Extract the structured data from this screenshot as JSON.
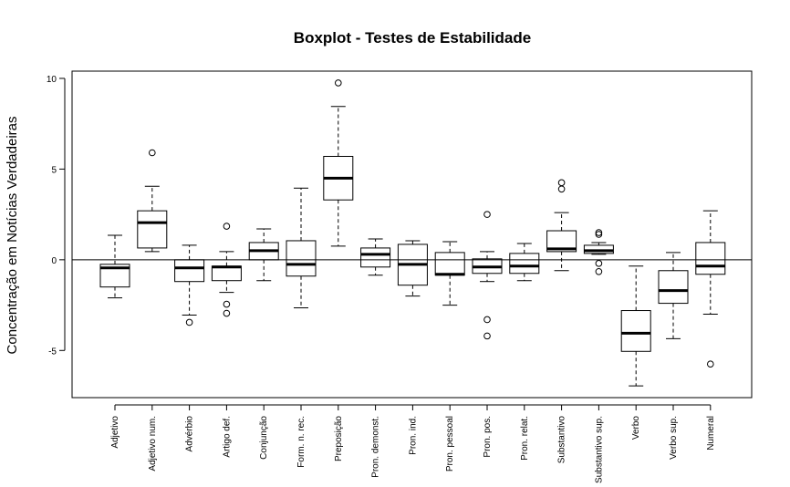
{
  "chart_data": {
    "type": "boxplot",
    "title": "Boxplot - Testes de Estabilidade",
    "xlabel": "",
    "ylabel": "Concentração em Notícias Verdadeiras",
    "ylim": [
      -7.6,
      10.4
    ],
    "yticks": [
      10,
      5,
      0,
      -5
    ],
    "reference_line": 0,
    "grid": false,
    "categories": [
      "Adjetivo",
      "Adjetivo num.",
      "Advérbio",
      "Artigo def.",
      "Conjunção",
      "Form. n. rec.",
      "Preposição",
      "Pron. demonst.",
      "Pron. ind.",
      "Pron. pessoal",
      "Pron. pos.",
      "Pron. relat.",
      "Substantivo",
      "Substantivo sup.",
      "Verbo",
      "Verbo sup.",
      "Numeral"
    ],
    "boxes": [
      {
        "whisker_low": -2.1,
        "q1": -1.5,
        "median": -0.45,
        "q3": -0.25,
        "whisker_high": 1.35,
        "outliers": []
      },
      {
        "whisker_low": 0.45,
        "q1": 0.65,
        "median": 2.05,
        "q3": 2.7,
        "whisker_high": 4.05,
        "outliers": [
          5.9
        ]
      },
      {
        "whisker_low": -3.05,
        "q1": -1.2,
        "median": -0.45,
        "q3": 0.0,
        "whisker_high": 0.8,
        "outliers": [
          -3.45
        ]
      },
      {
        "whisker_low": -1.8,
        "q1": -1.15,
        "median": -0.4,
        "q3": -0.35,
        "whisker_high": 0.45,
        "outliers": [
          1.85,
          -2.45,
          -2.95
        ]
      },
      {
        "whisker_low": -1.15,
        "q1": 0.0,
        "median": 0.5,
        "q3": 0.95,
        "whisker_high": 1.7,
        "outliers": []
      },
      {
        "whisker_low": -2.65,
        "q1": -0.9,
        "median": -0.25,
        "q3": 1.05,
        "whisker_high": 3.95,
        "outliers": []
      },
      {
        "whisker_low": 0.75,
        "q1": 3.3,
        "median": 4.5,
        "q3": 5.7,
        "whisker_high": 8.45,
        "outliers": [
          9.75
        ]
      },
      {
        "whisker_low": -0.85,
        "q1": -0.4,
        "median": 0.3,
        "q3": 0.65,
        "whisker_high": 1.15,
        "outliers": []
      },
      {
        "whisker_low": -2.0,
        "q1": -1.4,
        "median": -0.25,
        "q3": 0.85,
        "whisker_high": 1.05,
        "outliers": []
      },
      {
        "whisker_low": -2.5,
        "q1": -0.85,
        "median": -0.8,
        "q3": 0.4,
        "whisker_high": 1.0,
        "outliers": []
      },
      {
        "whisker_low": -1.2,
        "q1": -0.75,
        "median": -0.4,
        "q3": 0.05,
        "whisker_high": 0.45,
        "outliers": [
          2.5,
          -3.3,
          -4.2
        ]
      },
      {
        "whisker_low": -1.15,
        "q1": -0.75,
        "median": -0.35,
        "q3": 0.35,
        "whisker_high": 0.9,
        "outliers": []
      },
      {
        "whisker_low": -0.6,
        "q1": 0.45,
        "median": 0.6,
        "q3": 1.6,
        "whisker_high": 2.6,
        "outliers": [
          4.25,
          3.9
        ]
      },
      {
        "whisker_low": 0.3,
        "q1": 0.35,
        "median": 0.5,
        "q3": 0.8,
        "whisker_high": 0.95,
        "outliers": [
          1.5,
          1.4,
          -0.2,
          -0.65
        ]
      },
      {
        "whisker_low": -6.95,
        "q1": -5.05,
        "median": -4.05,
        "q3": -2.8,
        "whisker_high": -0.35,
        "outliers": []
      },
      {
        "whisker_low": -4.35,
        "q1": -2.4,
        "median": -1.7,
        "q3": -0.6,
        "whisker_high": 0.4,
        "outliers": []
      },
      {
        "whisker_low": -3.0,
        "q1": -0.8,
        "median": -0.35,
        "q3": 0.95,
        "whisker_high": 2.7,
        "outliers": [
          -5.75
        ]
      }
    ]
  }
}
